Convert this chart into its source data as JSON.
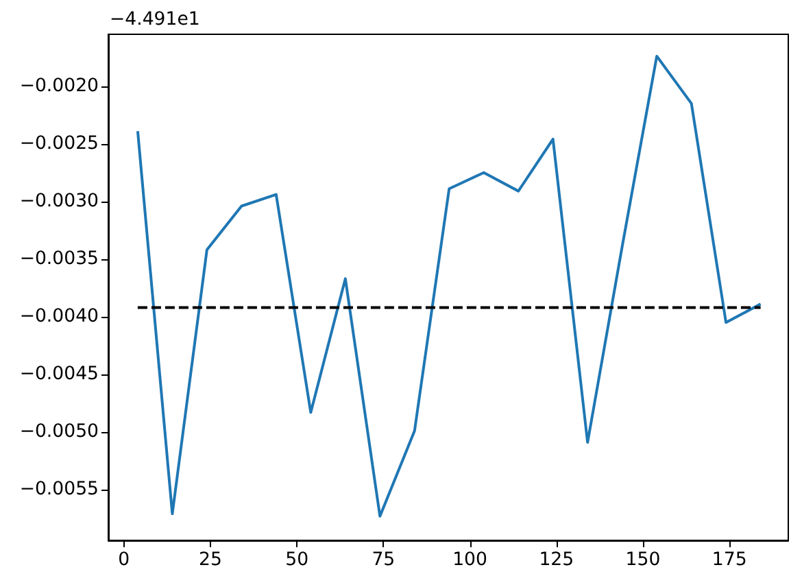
{
  "chart_data": {
    "type": "line",
    "annotations": [
      "−4.491e1"
    ],
    "x": [
      4,
      14,
      24,
      34,
      44,
      54,
      64,
      74,
      84,
      94,
      104,
      114,
      124,
      134,
      144,
      154,
      164,
      174,
      184
    ],
    "series": [
      {
        "color": "#1f77b4",
        "values": [
          -0.00239,
          -0.00571,
          -0.00342,
          -0.00304,
          -0.00294,
          -0.00483,
          -0.00367,
          -0.00573,
          -0.00499,
          -0.00289,
          -0.00275,
          -0.00291,
          -0.00246,
          -0.00509,
          -0.00339,
          -0.00174,
          -0.00215,
          -0.00405,
          -0.00389
        ]
      },
      {
        "type": "line",
        "x": [
          4,
          184
        ],
        "values": [
          -0.00392,
          -0.00392
        ],
        "color": "#000000",
        "line_style": "dashed"
      }
    ],
    "xlim": [
      -4.5,
      192
    ],
    "xticks": [
      0,
      25,
      50,
      75,
      100,
      125,
      150,
      175
    ],
    "ylim": [
      -0.00594,
      -0.00155
    ],
    "yticks": [
      {
        "value": -0.0055,
        "label": "−0.0055"
      },
      {
        "value": -0.005,
        "label": "−0.0050"
      },
      {
        "value": -0.0045,
        "label": "−0.0045"
      },
      {
        "value": -0.004,
        "label": "−0.0040"
      },
      {
        "value": -0.0035,
        "label": "−0.0035"
      },
      {
        "value": -0.003,
        "label": "−0.0030"
      },
      {
        "value": -0.0025,
        "label": "−0.0025"
      },
      {
        "value": -0.002,
        "label": "−0.0020"
      }
    ]
  }
}
